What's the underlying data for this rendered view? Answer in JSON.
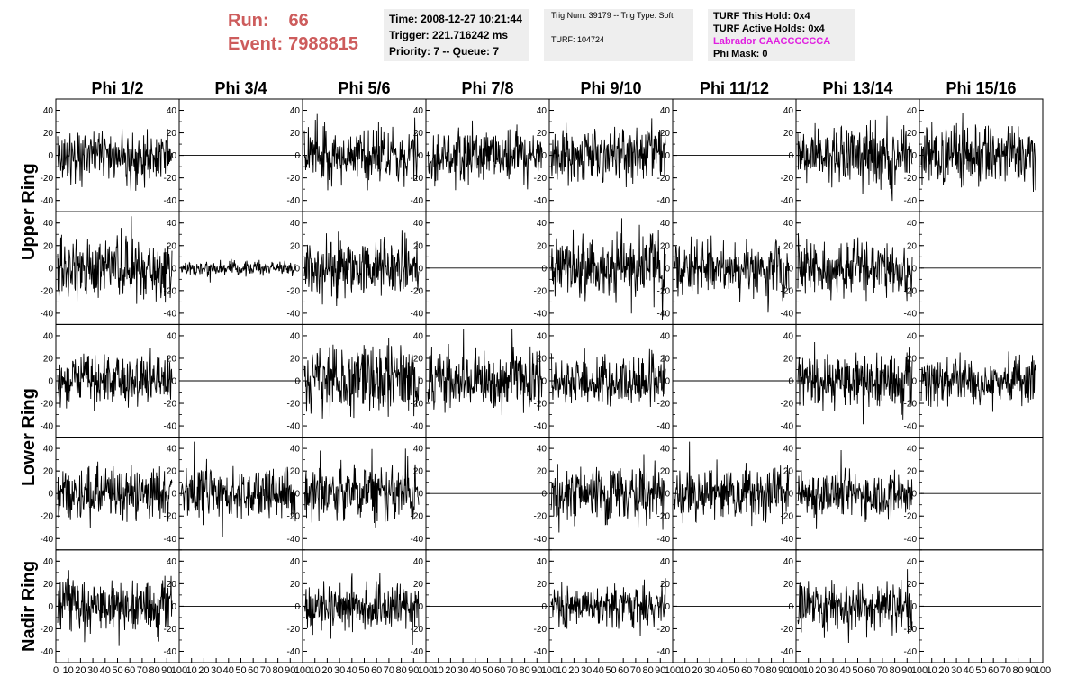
{
  "header": {
    "run_label": "Run:",
    "run_value": "66",
    "event_label": "Event:",
    "event_value": "7988815"
  },
  "time_box": {
    "time": "Time: 2008-12-27 10:21:44",
    "trigger": "Trigger: 221.716242 ms",
    "priority": "Priority: 7 -- Queue: 7"
  },
  "trig_box": {
    "trig": "Trig Num: 39179 -- Trig Type: Soft",
    "turf": "TURF: 104724"
  },
  "turf_box": {
    "this_hold": "TURF This Hold: 0x4",
    "active_holds": "TURF Active Holds: 0x4",
    "labrador": "Labrador CAACCCCCCA",
    "phi_mask": "Phi Mask: 0"
  },
  "colors": {
    "run_text": "#cd5c5c",
    "labrador_text": "#e020e0",
    "box_bg": "#eeeeee",
    "trace": "#000000"
  },
  "chart_data": {
    "type": "line",
    "columns": [
      "Phi 1/2",
      "Phi 3/4",
      "Phi 5/6",
      "Phi 7/8",
      "Phi 9/10",
      "Phi 11/12",
      "Phi 13/14",
      "Phi 15/16"
    ],
    "row_groups": [
      {
        "label": "Upper Ring",
        "rows": [
          0,
          1
        ]
      },
      {
        "label": "Lower Ring",
        "rows": [
          2,
          3
        ]
      },
      {
        "label": "Nadir Ring",
        "rows": [
          4
        ]
      }
    ],
    "x_range": [
      0,
      100
    ],
    "x_ticks": [
      "0",
      "10",
      "20",
      "30",
      "40",
      "50",
      "60",
      "70",
      "80",
      "90",
      "100"
    ],
    "y_range": [
      -50,
      50
    ],
    "y_ticks": [
      "40",
      "20",
      "0",
      "-20",
      "-40"
    ],
    "samples_per_trace": 260,
    "traces": [
      [
        {
          "kind": "noise",
          "amp": 12,
          "seed": 11
        },
        {
          "kind": "flat"
        },
        {
          "kind": "noise",
          "amp": 12,
          "seed": 13
        },
        {
          "kind": "noise",
          "amp": 12,
          "seed": 14
        },
        {
          "kind": "noise",
          "amp": 12,
          "seed": 15
        },
        {
          "kind": "flat"
        },
        {
          "kind": "noise",
          "amp": 12,
          "seed": 17
        },
        {
          "kind": "noise",
          "amp": 14,
          "seed": 18
        }
      ],
      [
        {
          "kind": "noise",
          "amp": 14,
          "seed": 21
        },
        {
          "kind": "noise",
          "amp": 3,
          "seed": 22
        },
        {
          "kind": "noise",
          "amp": 12,
          "seed": 23
        },
        {
          "kind": "flat"
        },
        {
          "kind": "noise",
          "amp": 13,
          "seed": 25
        },
        {
          "kind": "noise",
          "amp": 12,
          "seed": 26
        },
        {
          "kind": "noise",
          "amp": 12,
          "seed": 27
        },
        {
          "kind": "flat"
        }
      ],
      [
        {
          "kind": "noise",
          "amp": 11,
          "seed": 31
        },
        {
          "kind": "flat"
        },
        {
          "kind": "noise",
          "amp": 15,
          "seed": 33
        },
        {
          "kind": "noise",
          "amp": 12,
          "seed": 34
        },
        {
          "kind": "noise",
          "amp": 10,
          "seed": 35
        },
        {
          "kind": "flat"
        },
        {
          "kind": "noise",
          "amp": 12,
          "seed": 37
        },
        {
          "kind": "noise",
          "amp": 10,
          "seed": 38
        }
      ],
      [
        {
          "kind": "noise",
          "amp": 12,
          "seed": 41
        },
        {
          "kind": "noise",
          "amp": 11,
          "seed": 42
        },
        {
          "kind": "noise",
          "amp": 12,
          "seed": 43
        },
        {
          "kind": "flat"
        },
        {
          "kind": "noise",
          "amp": 13,
          "seed": 45
        },
        {
          "kind": "noise",
          "amp": 11,
          "seed": 46
        },
        {
          "kind": "noise",
          "amp": 10,
          "seed": 47
        },
        {
          "kind": "flat"
        }
      ],
      [
        {
          "kind": "noise",
          "amp": 11,
          "seed": 51
        },
        {
          "kind": "flat"
        },
        {
          "kind": "noise",
          "amp": 11,
          "seed": 53
        },
        {
          "kind": "flat"
        },
        {
          "kind": "noise",
          "amp": 9,
          "seed": 55
        },
        {
          "kind": "flat"
        },
        {
          "kind": "noise",
          "amp": 11,
          "seed": 57
        },
        {
          "kind": "flat"
        }
      ]
    ]
  }
}
